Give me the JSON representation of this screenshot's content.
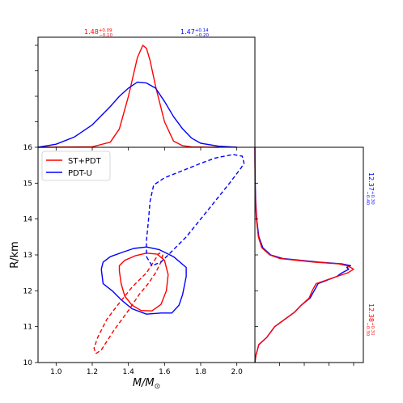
{
  "chart_data": [
    {
      "panel": "joint",
      "type": "contour",
      "xlabel": "M/M⊙",
      "ylabel": "R/km",
      "xlim": [
        0.9,
        2.1
      ],
      "ylim": [
        10,
        16
      ],
      "xticks": [
        1.0,
        1.2,
        1.4,
        1.6,
        1.8,
        2.0
      ],
      "xtick_labels": [
        "1.0",
        "1.2",
        "1.4",
        "1.6",
        "1.8",
        "2.0"
      ],
      "yticks": [
        10,
        11,
        12,
        13,
        14,
        15,
        16
      ],
      "ytick_labels": [
        "10",
        "11",
        "12",
        "13",
        "14",
        "15",
        "16"
      ],
      "legend": {
        "placement": "top-left",
        "entries": [
          {
            "label": "ST+PDT",
            "color": "#ff0000"
          },
          {
            "label": "PDT-U",
            "color": "#0000ff"
          }
        ]
      },
      "series": [
        {
          "name": "ST+PDT",
          "color": "#ff0000",
          "linestyle": "solid",
          "points": [
            [
              1.35,
              12.55
            ],
            [
              1.36,
              12.2
            ],
            [
              1.38,
              11.85
            ],
            [
              1.42,
              11.6
            ],
            [
              1.47,
              11.45
            ],
            [
              1.53,
              11.44
            ],
            [
              1.58,
              11.62
            ],
            [
              1.61,
              12.0
            ],
            [
              1.62,
              12.45
            ],
            [
              1.6,
              12.85
            ],
            [
              1.56,
              13.02
            ],
            [
              1.5,
              13.05
            ],
            [
              1.44,
              12.98
            ],
            [
              1.38,
              12.85
            ],
            [
              1.35,
              12.7
            ],
            [
              1.35,
              12.55
            ]
          ]
        },
        {
          "name": "PDT-U",
          "color": "#0000ff",
          "linestyle": "solid",
          "points": [
            [
              1.25,
              12.6
            ],
            [
              1.26,
              12.2
            ],
            [
              1.31,
              12.0
            ],
            [
              1.36,
              11.75
            ],
            [
              1.42,
              11.5
            ],
            [
              1.5,
              11.35
            ],
            [
              1.58,
              11.38
            ],
            [
              1.64,
              11.38
            ],
            [
              1.68,
              11.6
            ],
            [
              1.7,
              11.9
            ],
            [
              1.72,
              12.4
            ],
            [
              1.72,
              12.65
            ],
            [
              1.65,
              12.95
            ],
            [
              1.57,
              13.15
            ],
            [
              1.5,
              13.22
            ],
            [
              1.43,
              13.18
            ],
            [
              1.37,
              13.08
            ],
            [
              1.3,
              12.95
            ],
            [
              1.26,
              12.8
            ],
            [
              1.25,
              12.6
            ]
          ]
        },
        {
          "name": "ST+PDT",
          "color": "#ff0000",
          "linestyle": "dashed",
          "points": [
            [
              1.22,
              10.25
            ],
            [
              1.25,
              10.35
            ],
            [
              1.32,
              10.9
            ],
            [
              1.4,
              11.45
            ],
            [
              1.46,
              11.9
            ],
            [
              1.51,
              12.2
            ],
            [
              1.55,
              12.5
            ],
            [
              1.58,
              12.8
            ],
            [
              1.59,
              13.0
            ],
            [
              1.57,
              13.05
            ],
            [
              1.5,
              12.5
            ],
            [
              1.42,
              12.1
            ],
            [
              1.34,
              11.6
            ],
            [
              1.28,
              11.2
            ],
            [
              1.23,
              10.7
            ],
            [
              1.21,
              10.4
            ],
            [
              1.22,
              10.25
            ]
          ]
        },
        {
          "name": "PDT-U",
          "color": "#0000ff",
          "linestyle": "dashed",
          "points": [
            [
              1.5,
              12.95
            ],
            [
              1.53,
              12.7
            ],
            [
              1.58,
              12.8
            ],
            [
              1.64,
              13.1
            ],
            [
              1.72,
              13.5
            ],
            [
              1.8,
              14.0
            ],
            [
              1.88,
              14.5
            ],
            [
              1.96,
              15.0
            ],
            [
              2.02,
              15.4
            ],
            [
              2.04,
              15.55
            ],
            [
              2.03,
              15.75
            ],
            [
              1.98,
              15.8
            ],
            [
              1.88,
              15.7
            ],
            [
              1.8,
              15.55
            ],
            [
              1.7,
              15.35
            ],
            [
              1.6,
              15.15
            ],
            [
              1.54,
              14.95
            ],
            [
              1.52,
              14.5
            ],
            [
              1.51,
              13.9
            ],
            [
              1.5,
              13.4
            ],
            [
              1.5,
              12.95
            ]
          ]
        }
      ]
    },
    {
      "panel": "top-marginal",
      "type": "line",
      "xlim": [
        0.9,
        2.1
      ],
      "annotations": [
        {
          "text": "1.48",
          "sup": "+0.09",
          "sub": "−0.10",
          "color": "#ff0000"
        },
        {
          "text": "1.47",
          "sup": "+0.14",
          "sub": "−0.20",
          "color": "#0000ff"
        }
      ],
      "series": [
        {
          "name": "ST+PDT",
          "color": "#ff0000",
          "x": [
            0.9,
            1.2,
            1.3,
            1.35,
            1.4,
            1.45,
            1.48,
            1.5,
            1.52,
            1.55,
            1.6,
            1.65,
            1.7,
            1.75,
            1.9
          ],
          "y": [
            0,
            0.005,
            0.05,
            0.18,
            0.5,
            0.88,
            1.0,
            0.97,
            0.85,
            0.6,
            0.25,
            0.06,
            0.015,
            0.003,
            0
          ]
        },
        {
          "name": "PDT-U",
          "color": "#0000ff",
          "x": [
            0.9,
            1.0,
            1.1,
            1.2,
            1.3,
            1.35,
            1.4,
            1.45,
            1.5,
            1.55,
            1.6,
            1.65,
            1.7,
            1.75,
            1.8,
            1.9,
            2.0
          ],
          "y": [
            0.0,
            0.03,
            0.1,
            0.22,
            0.4,
            0.5,
            0.58,
            0.64,
            0.63,
            0.58,
            0.45,
            0.3,
            0.18,
            0.09,
            0.04,
            0.01,
            0.0
          ]
        }
      ]
    },
    {
      "panel": "right-marginal",
      "type": "line",
      "ylim": [
        10,
        16
      ],
      "annotations": [
        {
          "text": "12.37",
          "sup": "+0.30",
          "sub": "−0.40",
          "color": "#0000ff"
        },
        {
          "text": "12.38",
          "sup": "+0.31",
          "sub": "−0.30",
          "color": "#ff0000"
        }
      ],
      "series": [
        {
          "name": "ST+PDT",
          "color": "#ff0000",
          "y": [
            10.0,
            10.2,
            10.5,
            10.7,
            11.0,
            11.2,
            11.4,
            11.6,
            11.8,
            12.0,
            12.2,
            12.4,
            12.5,
            12.6,
            12.65,
            12.7,
            12.75,
            12.8,
            12.9,
            13.0,
            13.2,
            13.5,
            14.0,
            14.5,
            15.0,
            15.5,
            16.0
          ],
          "x": [
            0.0,
            0.01,
            0.04,
            0.12,
            0.2,
            0.3,
            0.4,
            0.47,
            0.55,
            0.58,
            0.62,
            0.83,
            0.94,
            1.0,
            0.97,
            0.93,
            0.85,
            0.6,
            0.25,
            0.15,
            0.07,
            0.035,
            0.015,
            0.006,
            0.002,
            0.001,
            0.0
          ]
        },
        {
          "name": "PDT-U",
          "color": "#0000ff",
          "y": [
            10.0,
            10.2,
            10.5,
            10.7,
            11.0,
            11.2,
            11.4,
            11.6,
            11.8,
            12.0,
            12.2,
            12.4,
            12.5,
            12.6,
            12.65,
            12.7,
            12.75,
            12.8,
            12.9,
            13.0,
            13.2,
            13.5,
            14.0,
            14.5,
            15.0,
            15.5,
            16.0
          ],
          "x": [
            0.0,
            0.01,
            0.04,
            0.12,
            0.2,
            0.3,
            0.4,
            0.47,
            0.56,
            0.6,
            0.64,
            0.83,
            0.88,
            0.95,
            0.93,
            0.97,
            0.88,
            0.65,
            0.28,
            0.16,
            0.08,
            0.04,
            0.018,
            0.008,
            0.003,
            0.001,
            0.0
          ]
        }
      ]
    }
  ]
}
